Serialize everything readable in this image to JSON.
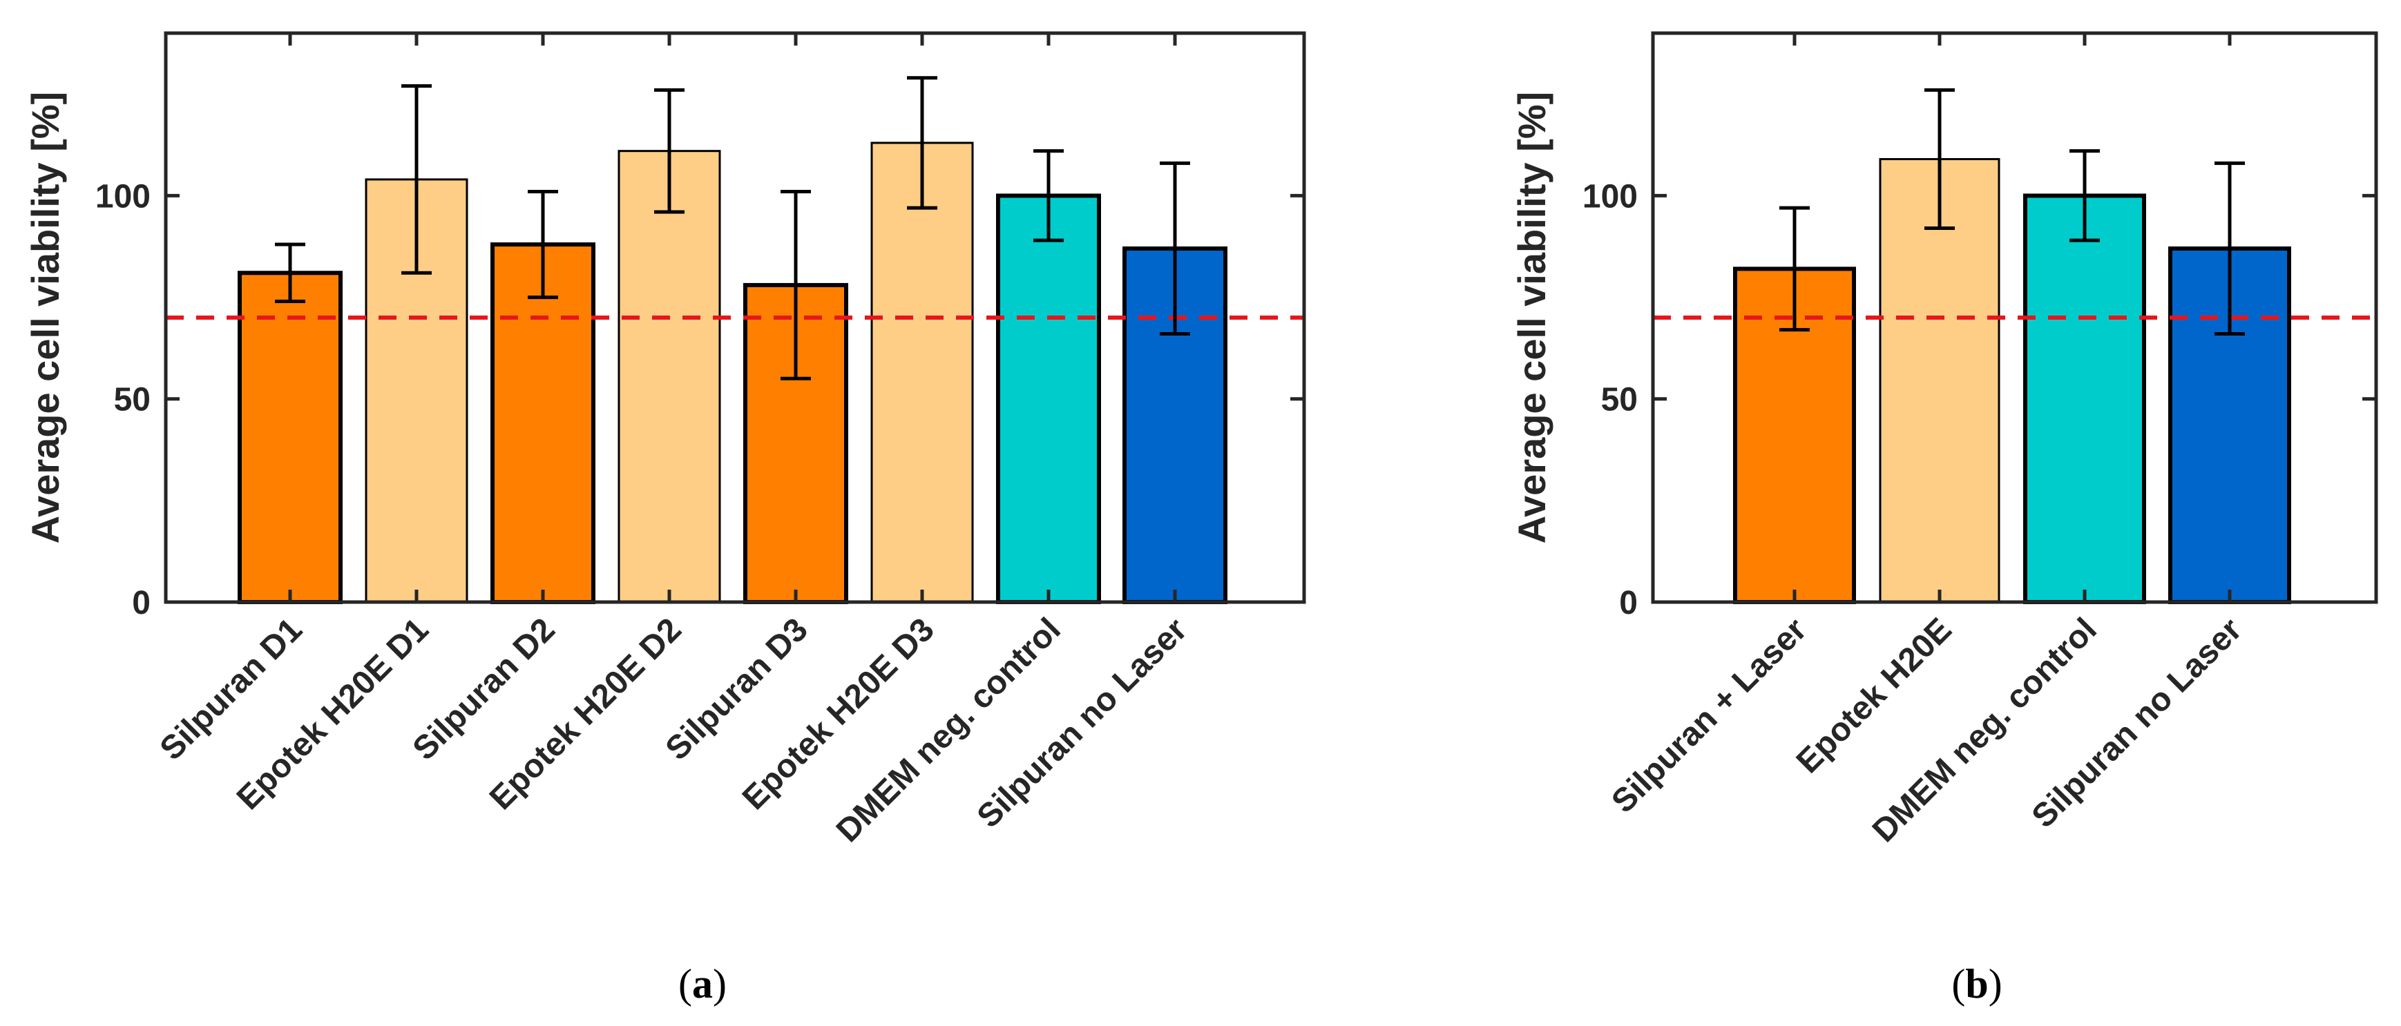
{
  "colors": {
    "silpuran": "#FF8000",
    "epotek": "#FFCE86",
    "dmem": "#00CCCC",
    "silpuran_no_laser": "#0066CC",
    "threshold": "#E8161B",
    "axis": "#262626"
  },
  "chart_data": [
    {
      "type": "bar",
      "panel_label": "a",
      "ylabel": "Average cell viability [%]",
      "ylim": [
        0,
        140
      ],
      "yticks": [
        0,
        50,
        100
      ],
      "threshold": 70,
      "categories": [
        "Silpuran D1",
        "Epotek H20E D1",
        "Silpuran D2",
        "Epotek H20E D2",
        "Silpuran D3",
        "Epotek H20E D3",
        "DMEM neg. control",
        "Silpuran no Laser"
      ],
      "values": [
        81,
        104,
        88,
        111,
        78,
        113,
        100,
        87
      ],
      "errors": [
        7,
        23,
        13,
        15,
        23,
        16,
        11,
        21
      ],
      "bar_colors": [
        "silpuran",
        "epotek",
        "silpuran",
        "epotek",
        "silpuran",
        "epotek",
        "dmem",
        "silpuran_no_laser"
      ]
    },
    {
      "type": "bar",
      "panel_label": "b",
      "ylabel": "Average cell viability [%]",
      "ylim": [
        0,
        140
      ],
      "yticks": [
        0,
        50,
        100
      ],
      "threshold": 70,
      "categories": [
        "Silpuran + Laser",
        "Epotek H20E",
        "DMEM neg. control",
        "Silpuran no Laser"
      ],
      "values": [
        82,
        109,
        100,
        87
      ],
      "errors": [
        15,
        17,
        11,
        21
      ],
      "bar_colors": [
        "silpuran",
        "epotek",
        "dmem",
        "silpuran_no_laser"
      ]
    }
  ]
}
